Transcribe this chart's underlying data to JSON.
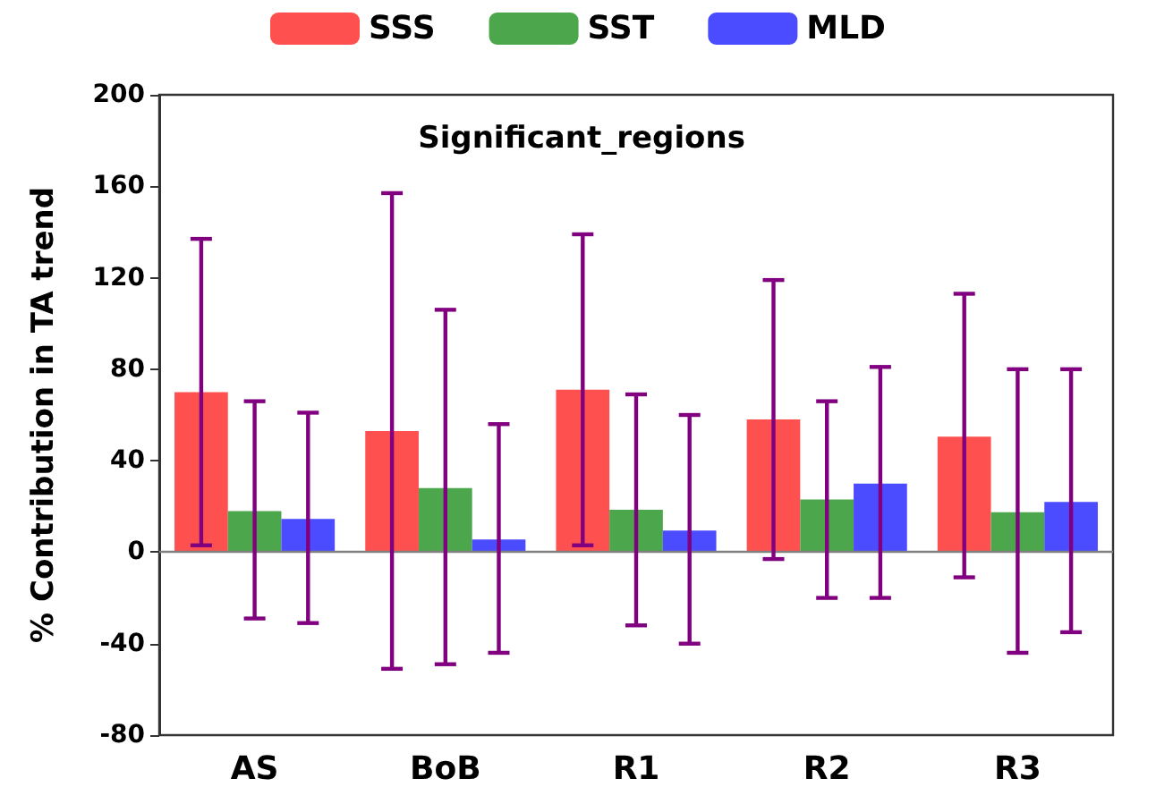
{
  "chart_data": {
    "type": "bar",
    "title": "Significant_regions",
    "ylabel": "% Contribution in TA trend",
    "categories": [
      "AS",
      "BoB",
      "R1",
      "R2",
      "R3"
    ],
    "series": [
      {
        "name": "SSS",
        "color": "#ff5050",
        "values": [
          70,
          53,
          71,
          58,
          50.5
        ],
        "errors": [
          [
            3,
            137
          ],
          [
            -51,
            157
          ],
          [
            3,
            139
          ],
          [
            -3,
            119
          ],
          [
            -11,
            113
          ]
        ]
      },
      {
        "name": "SST",
        "color": "#4ca64c",
        "values": [
          18,
          28,
          18.5,
          23,
          17.5
        ],
        "errors": [
          [
            -29,
            66
          ],
          [
            -49,
            106
          ],
          [
            -32,
            69
          ],
          [
            -20,
            66
          ],
          [
            -44,
            80
          ]
        ]
      },
      {
        "name": "MLD",
        "color": "#4b4bff",
        "values": [
          14.5,
          5.5,
          9.5,
          30,
          22
        ],
        "errors": [
          [
            -31,
            61
          ],
          [
            -44,
            56
          ],
          [
            -40,
            60
          ],
          [
            -20,
            81
          ],
          [
            -35,
            80
          ]
        ]
      }
    ],
    "ylim": [
      -80,
      200
    ],
    "yticks": [
      -80,
      -40,
      0,
      40,
      80,
      120,
      160,
      200
    ],
    "ref_lines": [
      {
        "axis": "y",
        "value": 0,
        "color": "#808080"
      }
    ],
    "grid": false,
    "legend": "top"
  }
}
